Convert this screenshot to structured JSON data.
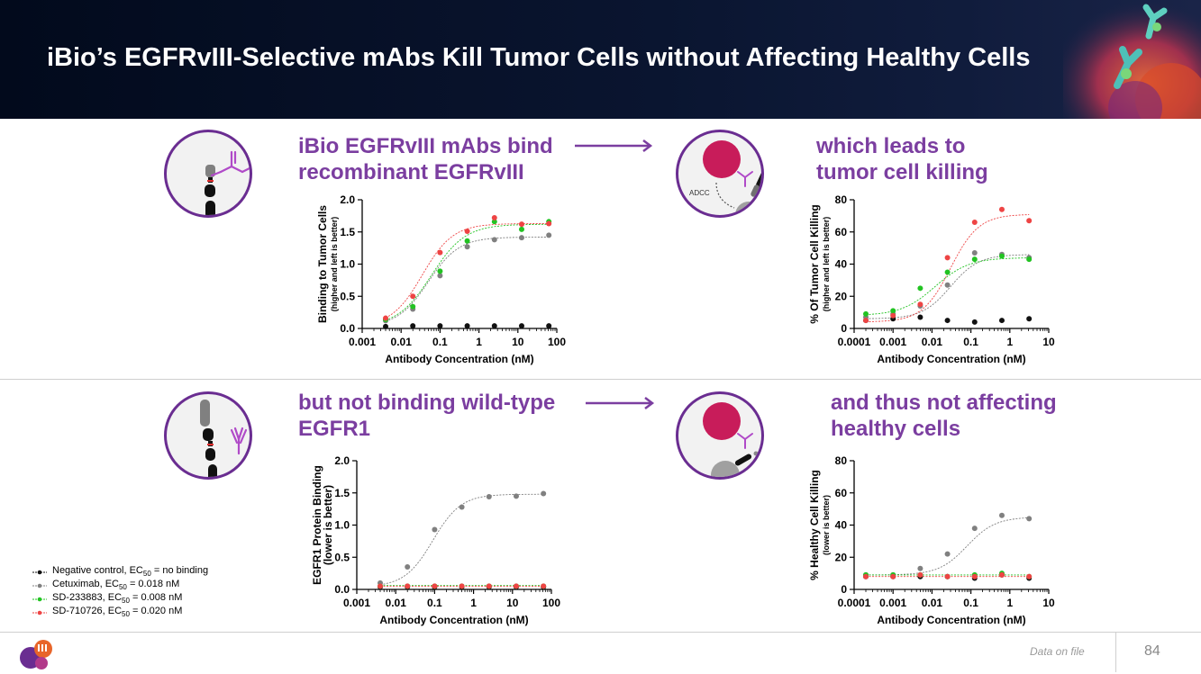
{
  "slide": {
    "title": "iBio’s EGFRvIII-Selective mAbs Kill Tumor Cells without Affecting Healthy Cells",
    "footer_note": "Data on file",
    "page_number": "84"
  },
  "panels": {
    "top_left": {
      "heading_line1": "iBio EGFRvIII mAbs bind",
      "heading_line2": "recombinant EGFRvIII"
    },
    "top_right": {
      "heading_line1": "which leads to",
      "heading_line2": "tumor  cell killing",
      "icon_label": "ADCC"
    },
    "bottom_left": {
      "heading_line1": "but not binding wild-type",
      "heading_line2": "EGFR1"
    },
    "bottom_right": {
      "heading_line1": "and thus not affecting",
      "heading_line2": "healthy cells"
    }
  },
  "colors": {
    "purple": "#7b3ea0",
    "circle_border": "#6a2d91",
    "negative": "#111111",
    "cetuximab": "#808080",
    "sd233883": "#22c322",
    "sd710726": "#ee4444",
    "tumor_cell": "#c81c5a"
  },
  "legend": [
    {
      "prefix": "Negative control, EC",
      "sub": "50",
      "suffix": " = no binding",
      "color": "#111111"
    },
    {
      "prefix": "Cetuximab, EC",
      "sub": "50",
      "suffix": " = 0.018 nM",
      "color": "#808080"
    },
    {
      "prefix": "SD-233883, EC",
      "sub": "50",
      "suffix": " = 0.008 nM",
      "color": "#22c322"
    },
    {
      "prefix": "SD-710726, EC",
      "sub": "50",
      "suffix": " = 0.020 nM",
      "color": "#ee4444"
    }
  ],
  "chart_data": [
    {
      "id": "c1",
      "type": "scatter",
      "scale_x": "log",
      "xlabel": "Antibody Concentration (nM)",
      "ylabel": "Binding to Tumor Cells",
      "ylabel2": "(higher and left is better)",
      "xlim": [
        0.001,
        100
      ],
      "ylim": [
        0,
        2.0
      ],
      "xticks": [
        0.001,
        0.01,
        0.1,
        1,
        10,
        100
      ],
      "xtick_labels": [
        "0.001",
        "0.01",
        "0.1",
        "1",
        "10",
        "100"
      ],
      "yticks": [
        0,
        0.5,
        1.0,
        1.5,
        2.0
      ],
      "ytick_labels": [
        "0.0",
        "0.5",
        "1.0",
        "1.5",
        "2.0"
      ],
      "x": [
        0.004,
        0.02,
        0.1,
        0.5,
        2.5,
        12.5,
        62.5
      ],
      "series": [
        {
          "name": "Negative control",
          "color": "#111111",
          "values": [
            0.03,
            0.04,
            0.04,
            0.04,
            0.04,
            0.04,
            0.04
          ]
        },
        {
          "name": "Cetuximab",
          "color": "#808080",
          "values": [
            0.12,
            0.3,
            0.82,
            1.27,
            1.38,
            1.41,
            1.45
          ]
        },
        {
          "name": "SD-233883",
          "color": "#22c322",
          "values": [
            0.14,
            0.34,
            0.89,
            1.36,
            1.66,
            1.54,
            1.66
          ]
        },
        {
          "name": "SD-710726",
          "color": "#ee4444",
          "values": [
            0.16,
            0.5,
            1.18,
            1.51,
            1.72,
            1.62,
            1.63
          ]
        }
      ],
      "fits": [
        {
          "color": "#808080",
          "bottom": 0.03,
          "top": 1.42,
          "ec50": 0.05,
          "hill": 1.1
        },
        {
          "color": "#22c322",
          "bottom": 0.03,
          "top": 1.62,
          "ec50": 0.06,
          "hill": 1.0
        },
        {
          "color": "#ee4444",
          "bottom": 0.03,
          "top": 1.63,
          "ec50": 0.035,
          "hill": 1.1
        }
      ]
    },
    {
      "id": "c2",
      "type": "scatter",
      "scale_x": "log",
      "xlabel": "Antibody Concentration (nM)",
      "ylabel": "% Of Tumor Cell Killing",
      "ylabel2": "(higher and left is better)",
      "xlim": [
        0.0001,
        10
      ],
      "ylim": [
        0,
        80
      ],
      "xticks": [
        0.0001,
        0.001,
        0.01,
        0.1,
        1,
        10
      ],
      "xtick_labels": [
        "0.0001",
        "0.001",
        "0.01",
        "0.1",
        "1",
        "10"
      ],
      "yticks": [
        0,
        20,
        40,
        60,
        80
      ],
      "ytick_labels": [
        "0",
        "20",
        "40",
        "60",
        "80"
      ],
      "x": [
        0.0002,
        0.001,
        0.005,
        0.025,
        0.125,
        0.625,
        3.125
      ],
      "series": [
        {
          "name": "Negative control",
          "color": "#111111",
          "values": [
            5,
            6,
            7,
            5,
            4,
            5,
            6
          ]
        },
        {
          "name": "Cetuximab",
          "color": "#808080",
          "values": [
            7,
            9,
            14,
            27,
            47,
            46,
            44
          ]
        },
        {
          "name": "SD-233883",
          "color": "#22c322",
          "values": [
            9,
            11,
            25,
            35,
            43,
            45,
            43
          ]
        },
        {
          "name": "SD-710726",
          "color": "#ee4444",
          "values": [
            5,
            8,
            15,
            44,
            66,
            74,
            67
          ]
        }
      ],
      "fits": [
        {
          "color": "#808080",
          "bottom": 6,
          "top": 46,
          "ec50": 0.03,
          "hill": 1.2
        },
        {
          "color": "#22c322",
          "bottom": 8,
          "top": 44,
          "ec50": 0.012,
          "hill": 1.0
        },
        {
          "color": "#ee4444",
          "bottom": 4,
          "top": 71,
          "ec50": 0.03,
          "hill": 1.2
        }
      ]
    },
    {
      "id": "c3",
      "type": "scatter",
      "scale_x": "log",
      "xlabel": "Antibody Concentration (nM)",
      "ylabel": "EGFR1 Protein Binding",
      "ylabel2": "(lower is better)",
      "xlim": [
        0.001,
        100
      ],
      "ylim": [
        0,
        2.0
      ],
      "xticks": [
        0.001,
        0.01,
        0.1,
        1,
        10,
        100
      ],
      "xtick_labels": [
        "0.001",
        "0.01",
        "0.1",
        "1",
        "10",
        "100"
      ],
      "yticks": [
        0,
        0.5,
        1.0,
        1.5,
        2.0
      ],
      "ytick_labels": [
        "0.0",
        "0.5",
        "1.0",
        "1.5",
        "2.0"
      ],
      "x": [
        0.004,
        0.02,
        0.1,
        0.5,
        2.5,
        12.5,
        62.5
      ],
      "series": [
        {
          "name": "Negative control",
          "color": "#111111",
          "values": [
            0.04,
            0.04,
            0.04,
            0.04,
            0.04,
            0.04,
            0.04
          ]
        },
        {
          "name": "Cetuximab",
          "color": "#808080",
          "values": [
            0.1,
            0.35,
            0.93,
            1.28,
            1.44,
            1.45,
            1.49
          ]
        },
        {
          "name": "SD-233883",
          "color": "#22c322",
          "values": [
            0.05,
            0.05,
            0.05,
            0.05,
            0.05,
            0.05,
            0.05
          ]
        },
        {
          "name": "SD-710726",
          "color": "#ee4444",
          "values": [
            0.05,
            0.05,
            0.05,
            0.05,
            0.05,
            0.05,
            0.05
          ]
        }
      ],
      "fits": [
        {
          "color": "#808080",
          "bottom": 0.04,
          "top": 1.48,
          "ec50": 0.09,
          "hill": 1.2
        },
        {
          "color": "#22c322",
          "bottom": 0.06,
          "top": 0.06,
          "ec50": 1,
          "hill": 1
        },
        {
          "color": "#ee4444",
          "bottom": 0.05,
          "top": 0.05,
          "ec50": 1,
          "hill": 1
        }
      ]
    },
    {
      "id": "c4",
      "type": "scatter",
      "scale_x": "log",
      "xlabel": "Antibody Concentration (nM)",
      "ylabel": "% Healthy Cell Killing",
      "ylabel2": "(lower is better)",
      "xlim": [
        0.0001,
        10
      ],
      "ylim": [
        0,
        80
      ],
      "xticks": [
        0.0001,
        0.001,
        0.01,
        0.1,
        1,
        10
      ],
      "xtick_labels": [
        "0.0001",
        "0.001",
        "0.01",
        "0.1",
        "1",
        "10"
      ],
      "yticks": [
        0,
        20,
        40,
        60,
        80
      ],
      "ytick_labels": [
        "0",
        "20",
        "40",
        "60",
        "80"
      ],
      "x": [
        0.0002,
        0.001,
        0.005,
        0.025,
        0.125,
        0.625,
        3.125
      ],
      "series": [
        {
          "name": "Negative control",
          "color": "#111111",
          "values": [
            8,
            8,
            8,
            8,
            7,
            9,
            7
          ]
        },
        {
          "name": "Cetuximab",
          "color": "#808080",
          "values": [
            9,
            9,
            13,
            22,
            38,
            46,
            44
          ]
        },
        {
          "name": "SD-233883",
          "color": "#22c322",
          "values": [
            9,
            9,
            9,
            8,
            9,
            10,
            8
          ]
        },
        {
          "name": "SD-710726",
          "color": "#ee4444",
          "values": [
            8,
            8,
            9,
            8,
            8,
            9,
            8
          ]
        }
      ],
      "fits": [
        {
          "color": "#808080",
          "bottom": 9,
          "top": 45,
          "ec50": 0.08,
          "hill": 1.2
        },
        {
          "color": "#22c322",
          "bottom": 9,
          "top": 9,
          "ec50": 1,
          "hill": 1
        },
        {
          "color": "#ee4444",
          "bottom": 8,
          "top": 8,
          "ec50": 1,
          "hill": 1
        }
      ]
    }
  ]
}
